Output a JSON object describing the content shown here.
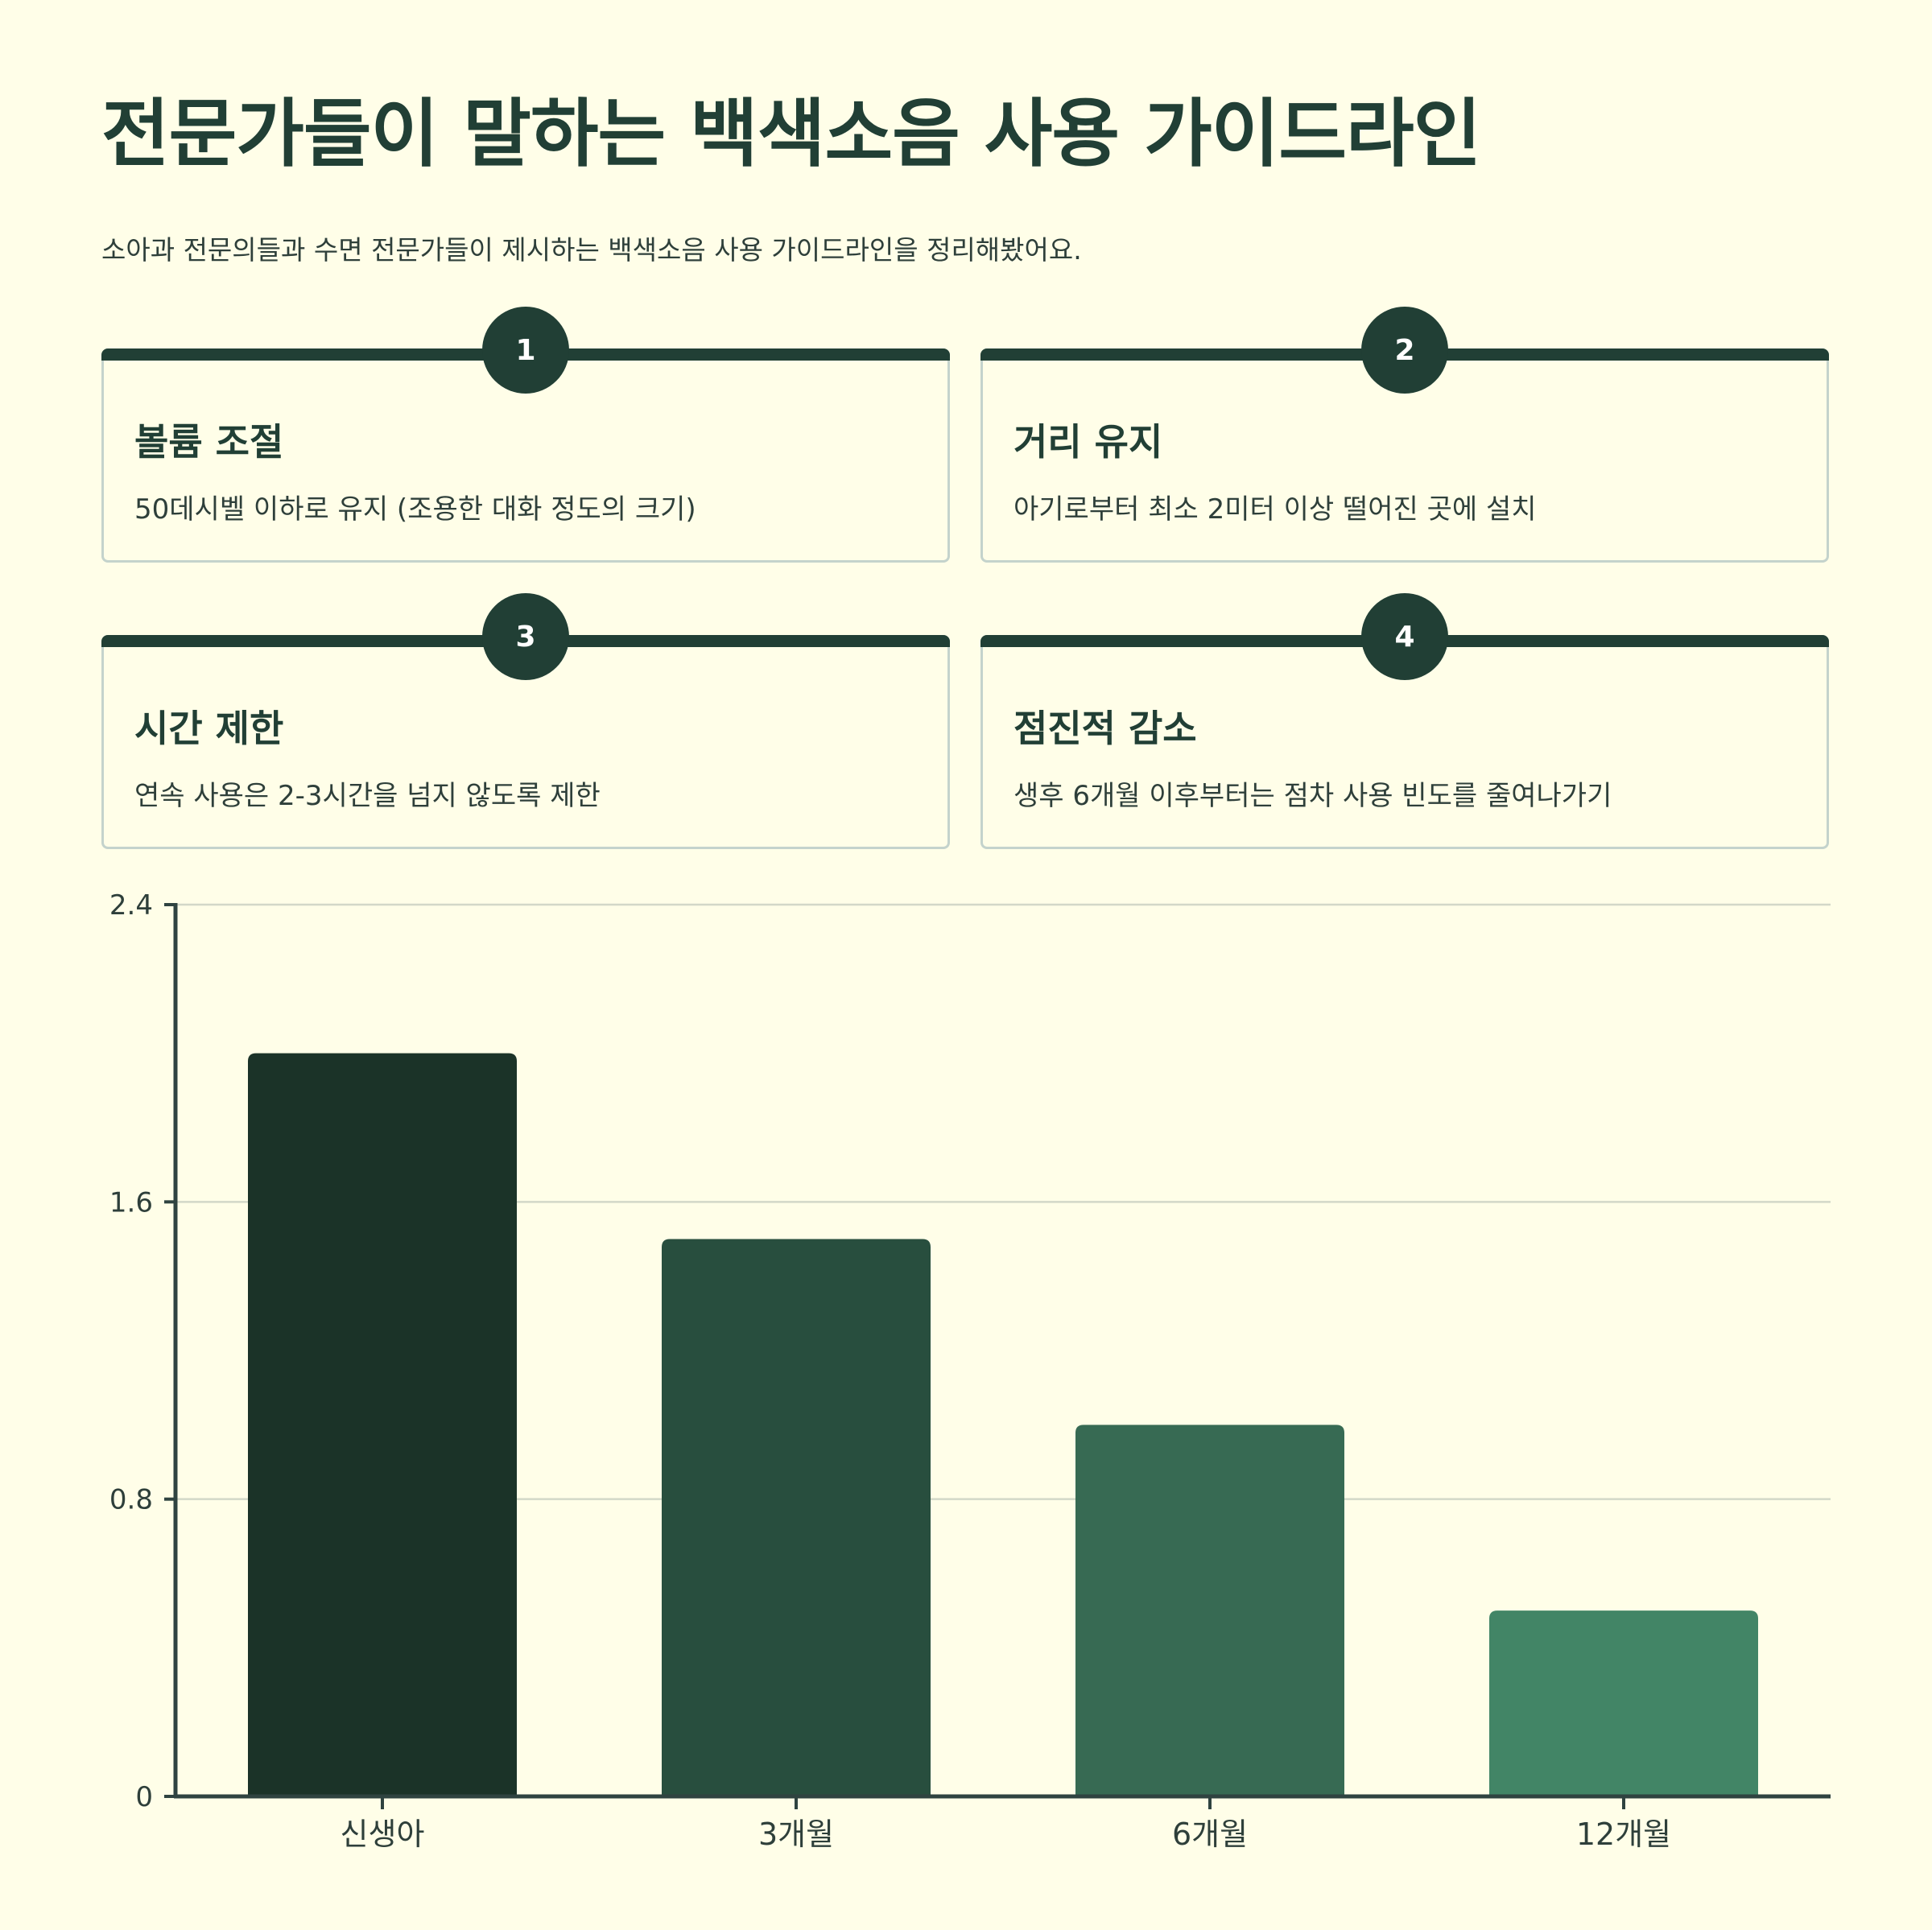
{
  "header": {
    "title": "전문가들이 말하는 백색소음 사용 가이드라인",
    "subtitle": "소아과 전문의들과 수면 전문가들이 제시하는 백색소음 사용 가이드라인을 정리해봤어요."
  },
  "guidelines": [
    {
      "number": "1",
      "title": "볼륨 조절",
      "desc": "50데시벨 이하로 유지 (조용한 대화 정도의 크기)"
    },
    {
      "number": "2",
      "title": "거리 유지",
      "desc": "아기로부터 최소 2미터 이상 떨어진 곳에 설치"
    },
    {
      "number": "3",
      "title": "시간 제한",
      "desc": "연속 사용은 2-3시간을 넘지 않도록 제한"
    },
    {
      "number": "4",
      "title": "점진적 감소",
      "desc": "생후 6개월 이후부터는 점차 사용 빈도를 줄여나가기"
    }
  ],
  "colors": {
    "background": "#fffee8",
    "primary": "#213f35",
    "bars": [
      "#1b3328",
      "#284e3e",
      "#376a53",
      "#428566"
    ]
  },
  "chart_data": {
    "type": "bar",
    "title": "",
    "xlabel": "",
    "ylabel": "",
    "categories": [
      "신생아",
      "3개월",
      "6개월",
      "12개월"
    ],
    "values": [
      2.0,
      1.5,
      1.0,
      0.5
    ],
    "yticks": [
      "0",
      "0.8",
      "1.6",
      "2.4"
    ],
    "ylim": [
      0,
      2.4
    ],
    "grid": true
  }
}
